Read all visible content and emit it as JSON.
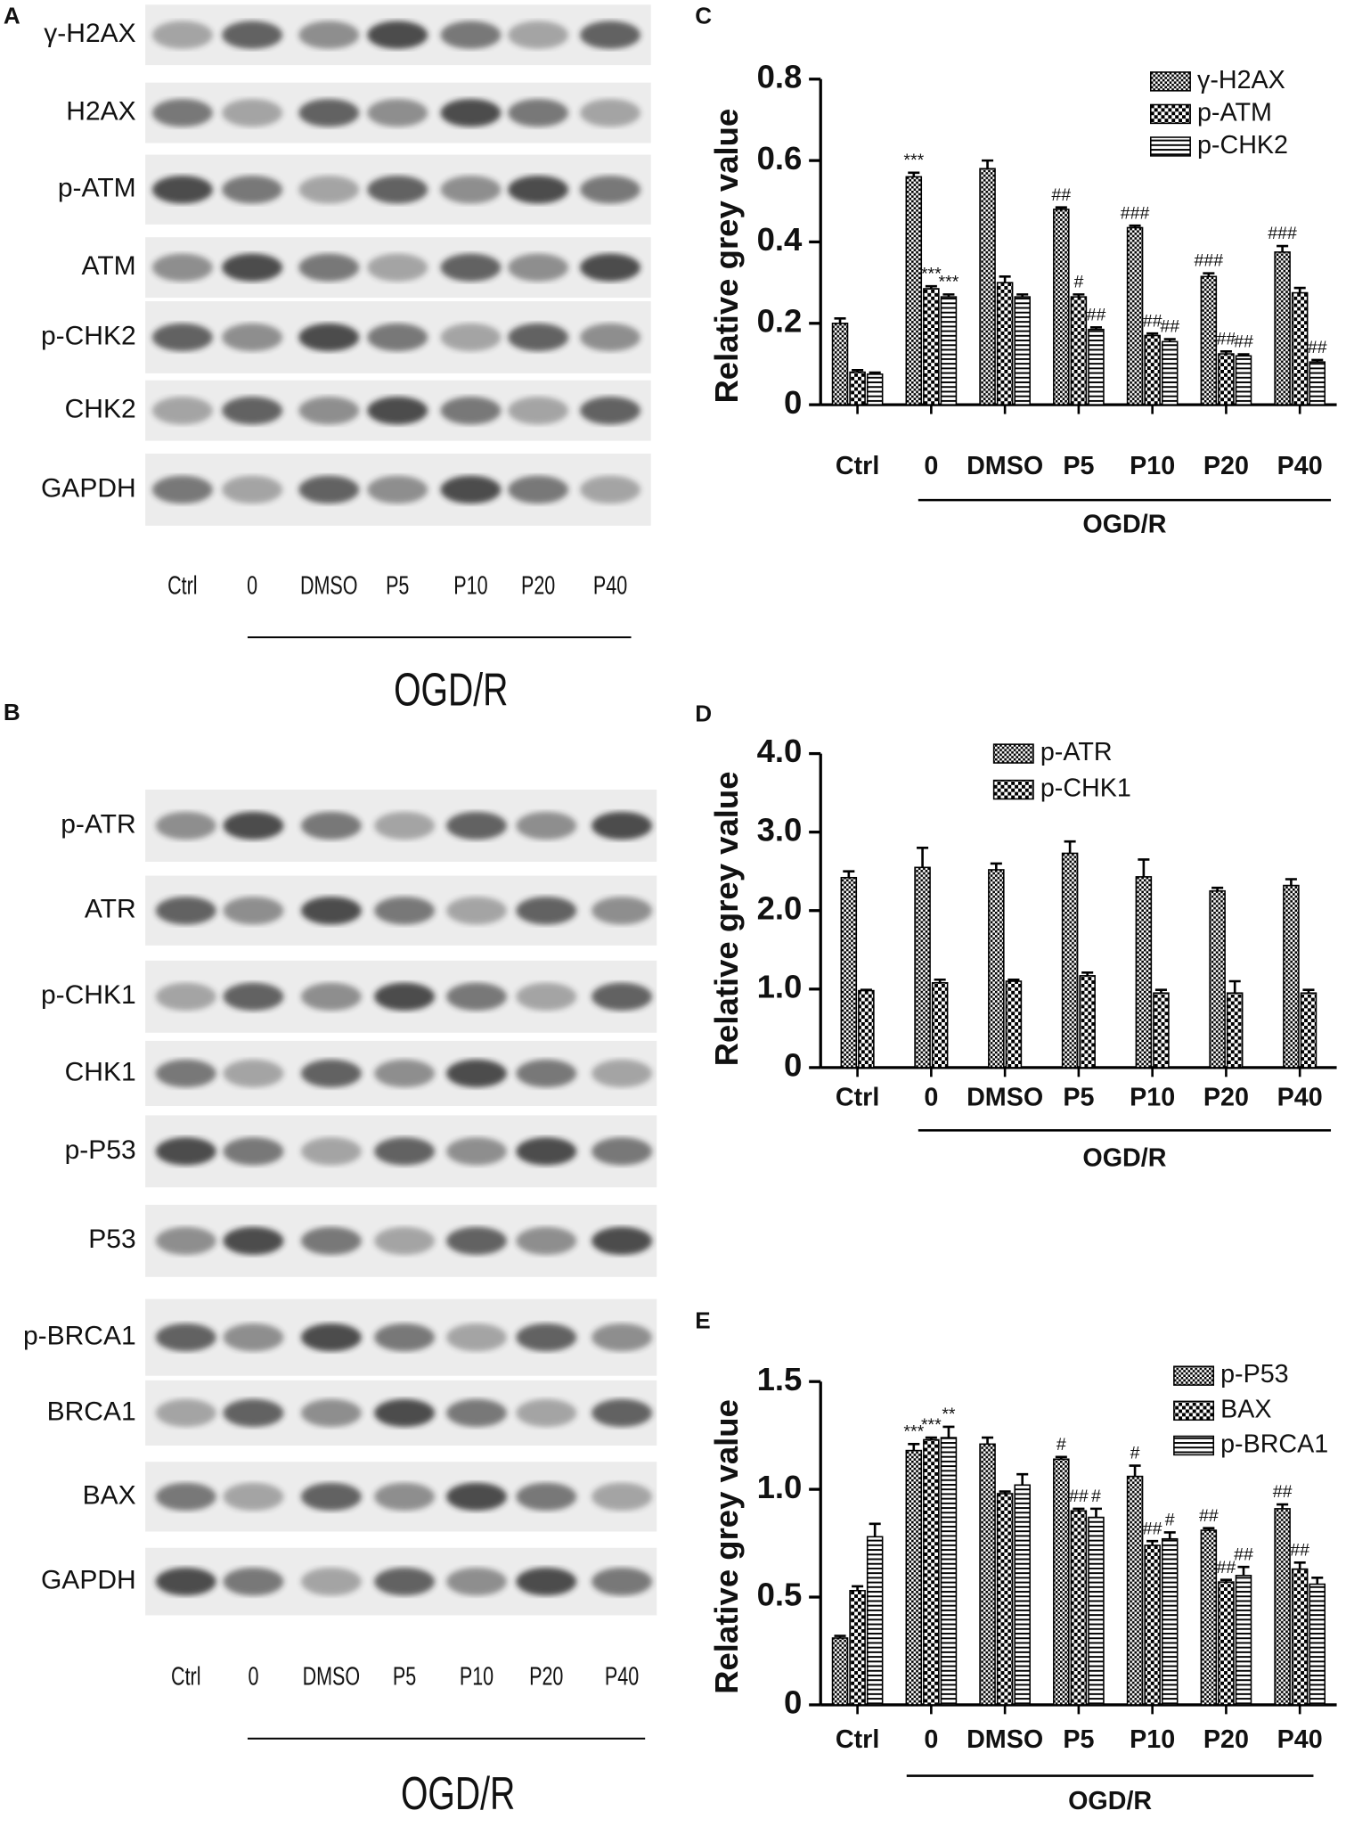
{
  "chart_data": [
    {
      "type": "bar",
      "panel": "C",
      "y_label": "Relative grey value",
      "group_label": "OGD/R",
      "categories": [
        "Ctrl",
        "0",
        "DMSO",
        "P5",
        "P10",
        "P20",
        "P40"
      ],
      "ylim": [
        0,
        0.8
      ],
      "yticks": [
        0,
        0.2,
        0.4,
        0.6,
        0.8
      ],
      "series": [
        {
          "name": "γ-H2AX",
          "color": "#000",
          "pattern": "checker-fine",
          "values": [
            0.2,
            0.56,
            0.58,
            0.48,
            0.435,
            0.315,
            0.375
          ],
          "errors": [
            0.012,
            0.01,
            0.02,
            0.005,
            0.005,
            0.008,
            0.015
          ],
          "annotations": [
            null,
            "***",
            null,
            "##",
            "###",
            "###",
            "###"
          ]
        },
        {
          "name": "p-ATM",
          "color": "#000",
          "pattern": "checker",
          "values": [
            0.08,
            0.285,
            0.3,
            0.265,
            0.17,
            0.125,
            0.275
          ],
          "errors": [
            0.005,
            0.006,
            0.015,
            0.006,
            0.005,
            0.006,
            0.012
          ],
          "annotations": [
            null,
            "***",
            null,
            "#",
            "##",
            "##",
            null
          ]
        },
        {
          "name": "p-CHK2",
          "color": "#000",
          "pattern": "hlines",
          "values": [
            0.075,
            0.265,
            0.265,
            0.185,
            0.155,
            0.12,
            0.105
          ],
          "errors": [
            0.004,
            0.006,
            0.006,
            0.005,
            0.006,
            0.004,
            0.005
          ],
          "annotations": [
            null,
            "***",
            null,
            "##",
            "##",
            "##",
            "##"
          ]
        }
      ]
    },
    {
      "type": "bar",
      "panel": "D",
      "y_label": "Relative grey value",
      "group_label": "OGD/R",
      "categories": [
        "Ctrl",
        "0",
        "DMSO",
        "P5",
        "P10",
        "P20",
        "P40"
      ],
      "ylim": [
        0,
        4
      ],
      "yticks": [
        0,
        {
          "value": 1,
          "label": "1.0"
        },
        {
          "value": 2,
          "label": "2.0"
        },
        {
          "value": 3,
          "label": "3.0"
        },
        {
          "value": 4,
          "label": "4.0"
        }
      ],
      "series": [
        {
          "name": "p-ATR",
          "color": "#000",
          "pattern": "checker-fine",
          "values": [
            2.42,
            2.55,
            2.52,
            2.73,
            2.43,
            2.25,
            2.32
          ],
          "errors": [
            0.08,
            0.25,
            0.08,
            0.15,
            0.22,
            0.04,
            0.08
          ]
        },
        {
          "name": "p-CHK1",
          "color": "#000",
          "pattern": "checker",
          "values": [
            0.98,
            1.08,
            1.1,
            1.17,
            0.95,
            0.95,
            0.95
          ],
          "errors": [
            0.01,
            0.04,
            0.02,
            0.04,
            0.04,
            0.15,
            0.04
          ]
        }
      ]
    },
    {
      "type": "bar",
      "panel": "E",
      "y_label": "Relative grey value",
      "group_label": "OGD/R",
      "categories": [
        "Ctrl",
        "0",
        "DMSO",
        "P5",
        "P10",
        "P20",
        "P40"
      ],
      "ylim": [
        0,
        1.5
      ],
      "yticks": [
        0,
        0.5,
        {
          "value": 1,
          "label": "1.0"
        },
        1.5
      ],
      "series": [
        {
          "name": "p-P53",
          "color": "#000",
          "pattern": "checker-fine",
          "values": [
            0.31,
            1.18,
            1.21,
            1.14,
            1.06,
            0.81,
            0.91
          ],
          "errors": [
            0.01,
            0.03,
            0.03,
            0.01,
            0.05,
            0.01,
            0.02
          ],
          "annotations": [
            null,
            "***",
            null,
            "#",
            "#",
            "##",
            "##"
          ]
        },
        {
          "name": "BAX",
          "color": "#000",
          "pattern": "checker",
          "values": [
            0.53,
            1.23,
            0.98,
            0.9,
            0.74,
            0.57,
            0.63
          ],
          "errors": [
            0.02,
            0.01,
            0.01,
            0.01,
            0.02,
            0.01,
            0.03
          ],
          "annotations": [
            null,
            "***",
            null,
            "##",
            "##",
            "##",
            "##"
          ]
        },
        {
          "name": "p-BRCA1",
          "color": "#000",
          "pattern": "hlines",
          "values": [
            0.78,
            1.24,
            1.02,
            0.87,
            0.77,
            0.6,
            0.56
          ],
          "errors": [
            0.06,
            0.05,
            0.05,
            0.04,
            0.03,
            0.04,
            0.03
          ],
          "annotations": [
            null,
            "**",
            null,
            "#",
            "#",
            "##",
            null
          ]
        }
      ]
    }
  ],
  "blots": [
    {
      "panel": "A",
      "rows": [
        "γ-H2AX",
        "H2AX",
        "p-ATM",
        "ATM",
        "p-CHK2",
        "CHK2",
        "GAPDH"
      ],
      "lanes": [
        "Ctrl",
        "0",
        "DMSO",
        "P5",
        "P10",
        "P20",
        "P40"
      ],
      "group_label": "OGD/R"
    },
    {
      "panel": "B",
      "rows": [
        "p-ATR",
        "ATR",
        "p-CHK1",
        "CHK1",
        "p-P53",
        "P53",
        "p-BRCA1",
        "BRCA1",
        "BAX",
        "GAPDH"
      ],
      "lanes": [
        "Ctrl",
        "0",
        "DMSO",
        "P5",
        "P10",
        "P20",
        "P40"
      ],
      "group_label": "OGD/R"
    }
  ]
}
